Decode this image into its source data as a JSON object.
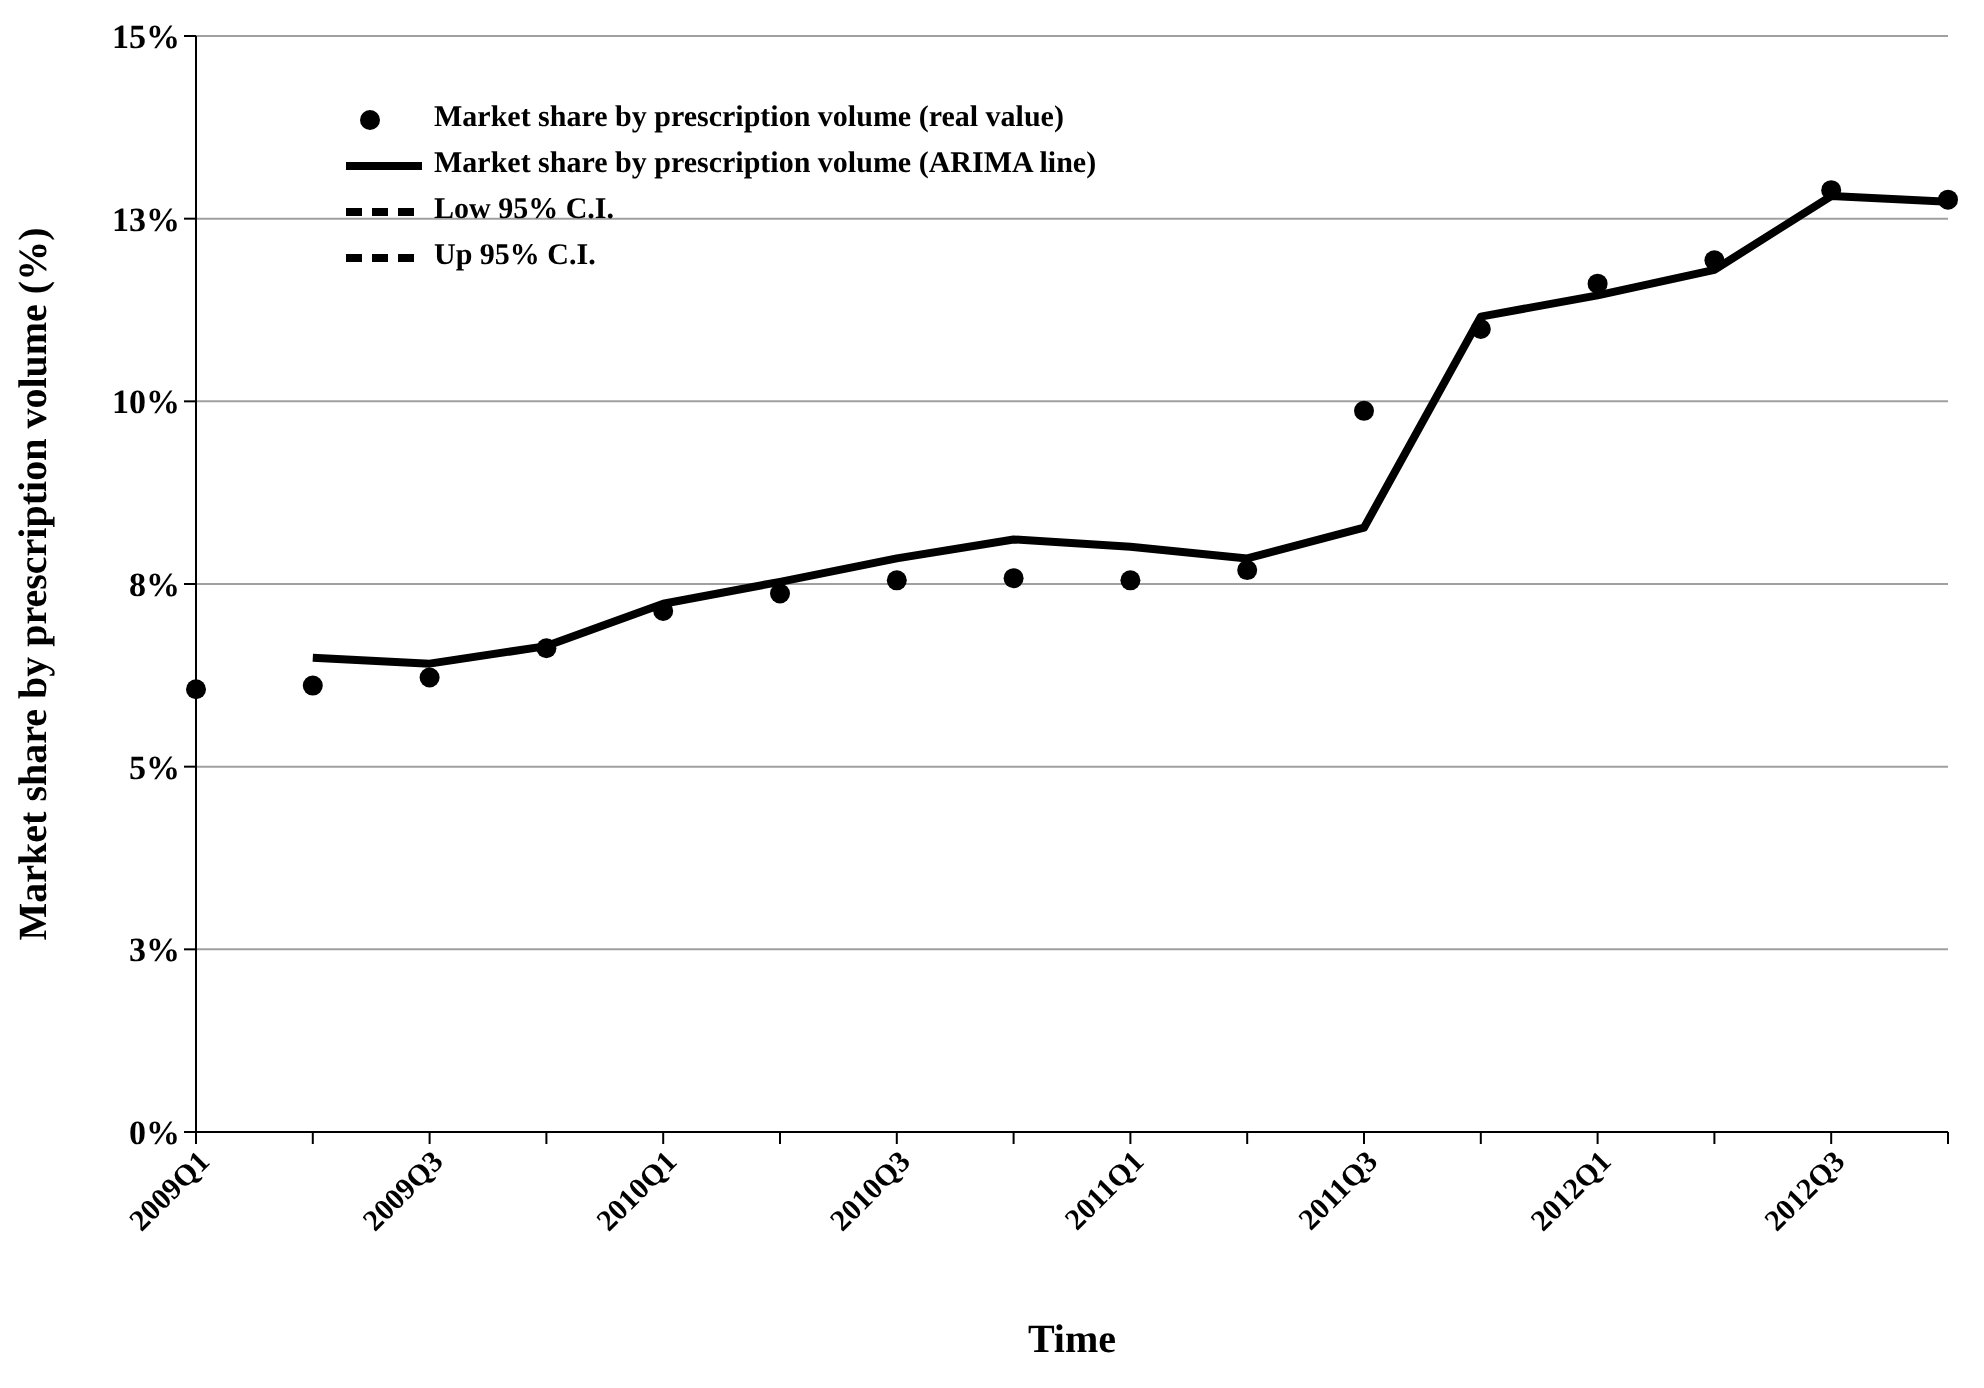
{
  "chart_data": {
    "type": "line",
    "xlabel": "Time",
    "ylabel": "Market share by prescription volume (%)",
    "categories": [
      "2009Q1",
      null,
      "2009Q3",
      null,
      "2010Q1",
      null,
      "2010Q3",
      null,
      "2011Q1",
      null,
      "2011Q3",
      null,
      "2012Q1",
      null,
      "2012Q3",
      null
    ],
    "series": [
      {
        "name": "Market share by prescription volume (real value)",
        "type": "scatter",
        "marker": "circle",
        "color": "#000000",
        "values": [
          6.06,
          6.11,
          6.22,
          6.62,
          7.13,
          7.37,
          7.55,
          7.58,
          7.55,
          7.69,
          9.87,
          10.99,
          11.61,
          11.93,
          12.89,
          12.76
        ]
      },
      {
        "name": "Market share by prescription volume (ARIMA line)",
        "line_style": "solid",
        "color": "#000000",
        "values": [
          null,
          6.49,
          6.41,
          6.65,
          7.23,
          7.53,
          7.85,
          8.11,
          8.01,
          7.85,
          8.27,
          11.16,
          11.45,
          11.8,
          12.81,
          12.73
        ]
      },
      {
        "name": "Low 95% C.I.",
        "line_style": "dashed",
        "color": "#000000",
        "values": [
          null,
          null,
          null,
          null,
          null,
          null,
          null,
          null,
          null,
          null,
          null,
          null,
          null,
          null,
          null,
          null
        ]
      },
      {
        "name": "Up 95% C.I.",
        "line_style": "dashed",
        "color": "#000000",
        "values": [
          null,
          null,
          null,
          null,
          null,
          null,
          null,
          null,
          null,
          null,
          null,
          null,
          null,
          null,
          null,
          null
        ]
      }
    ],
    "ylim": [
      0,
      15
    ],
    "yticks": [
      {
        "value": 0,
        "label": "0%"
      },
      {
        "value": 2.5,
        "label": "3%"
      },
      {
        "value": 5,
        "label": "5%"
      },
      {
        "value": 7.5,
        "label": "8%"
      },
      {
        "value": 10,
        "label": "10%"
      },
      {
        "value": 12.5,
        "label": "13%"
      },
      {
        "value": 15,
        "label": "15%"
      }
    ],
    "grid": "y",
    "legend": "top left"
  }
}
